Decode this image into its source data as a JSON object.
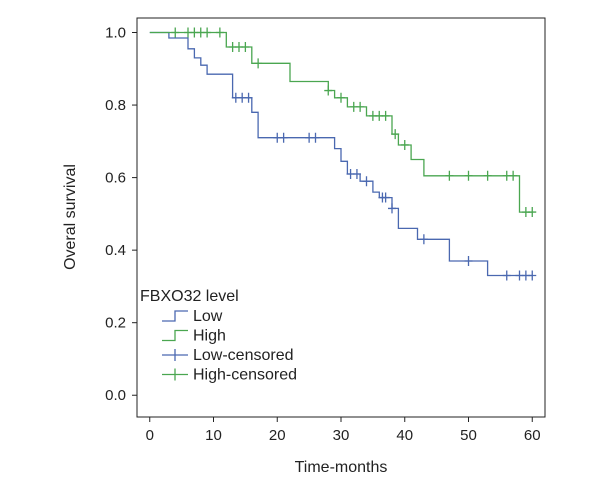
{
  "chart_data": {
    "type": "line",
    "subtype": "kaplan-meier-step",
    "xlabel": "Time-months",
    "ylabel": "Overal survival",
    "xlim": [
      -2,
      62
    ],
    "ylim": [
      -0.06,
      1.04
    ],
    "x_ticks": [
      0,
      10,
      20,
      30,
      40,
      50,
      60
    ],
    "x_tick_labels": [
      "0",
      "10",
      "20",
      "30",
      "40",
      "50",
      "60"
    ],
    "y_ticks": [
      0.0,
      0.2,
      0.4,
      0.6,
      0.8,
      1.0
    ],
    "y_tick_labels": [
      "0.0",
      "0.2",
      "0.4",
      "0.6",
      "0.8",
      "1.0"
    ],
    "grid": false,
    "legend": {
      "title": "FBXO32 level",
      "position": "bottom-left",
      "entries": [
        {
          "label": "Low",
          "series": "low",
          "kind": "step"
        },
        {
          "label": "High",
          "series": "high",
          "kind": "step"
        },
        {
          "label": "Low-censored",
          "series": "low",
          "kind": "censor"
        },
        {
          "label": "High-censored",
          "series": "high",
          "kind": "censor"
        }
      ]
    },
    "series": [
      {
        "name": "Low",
        "key": "low",
        "color": "#4a68b0",
        "steps": [
          [
            0,
            1.0
          ],
          [
            3,
            0.985
          ],
          [
            6,
            0.955
          ],
          [
            7,
            0.93
          ],
          [
            8,
            0.91
          ],
          [
            9,
            0.885
          ],
          [
            13,
            0.82
          ],
          [
            16,
            0.78
          ],
          [
            17,
            0.71
          ],
          [
            28,
            0.71
          ],
          [
            29,
            0.68
          ],
          [
            30,
            0.645
          ],
          [
            31,
            0.61
          ],
          [
            33,
            0.59
          ],
          [
            35,
            0.56
          ],
          [
            36,
            0.545
          ],
          [
            38,
            0.515
          ],
          [
            39,
            0.46
          ],
          [
            42,
            0.43
          ],
          [
            47,
            0.37
          ],
          [
            53,
            0.33
          ],
          [
            60,
            0.33
          ]
        ],
        "censored": [
          [
            13.5,
            0.82
          ],
          [
            14.5,
            0.82
          ],
          [
            15.5,
            0.82
          ],
          [
            20,
            0.71
          ],
          [
            21,
            0.71
          ],
          [
            25,
            0.71
          ],
          [
            26,
            0.71
          ],
          [
            31.5,
            0.61
          ],
          [
            32.5,
            0.61
          ],
          [
            34,
            0.59
          ],
          [
            36.5,
            0.545
          ],
          [
            37,
            0.545
          ],
          [
            38,
            0.515
          ],
          [
            43,
            0.43
          ],
          [
            50,
            0.37
          ],
          [
            56,
            0.33
          ],
          [
            58,
            0.33
          ],
          [
            59,
            0.33
          ],
          [
            60,
            0.33
          ]
        ]
      },
      {
        "name": "High",
        "key": "high",
        "color": "#4aa650",
        "steps": [
          [
            0,
            1.0
          ],
          [
            12,
            0.96
          ],
          [
            16,
            0.915
          ],
          [
            22,
            0.865
          ],
          [
            28,
            0.84
          ],
          [
            29,
            0.82
          ],
          [
            31,
            0.795
          ],
          [
            34,
            0.77
          ],
          [
            38,
            0.72
          ],
          [
            39,
            0.69
          ],
          [
            41,
            0.65
          ],
          [
            43,
            0.605
          ],
          [
            58,
            0.505
          ],
          [
            60,
            0.505
          ]
        ],
        "censored": [
          [
            4,
            1.0
          ],
          [
            6,
            1.0
          ],
          [
            7,
            1.0
          ],
          [
            8,
            1.0
          ],
          [
            9,
            1.0
          ],
          [
            11,
            1.0
          ],
          [
            13,
            0.96
          ],
          [
            14,
            0.96
          ],
          [
            15,
            0.96
          ],
          [
            17,
            0.915
          ],
          [
            28,
            0.84
          ],
          [
            30,
            0.82
          ],
          [
            32,
            0.795
          ],
          [
            33,
            0.795
          ],
          [
            35,
            0.77
          ],
          [
            36,
            0.77
          ],
          [
            37,
            0.77
          ],
          [
            38.5,
            0.72
          ],
          [
            40,
            0.69
          ],
          [
            47,
            0.605
          ],
          [
            50,
            0.605
          ],
          [
            53,
            0.605
          ],
          [
            56,
            0.605
          ],
          [
            57,
            0.605
          ],
          [
            59,
            0.505
          ],
          [
            60,
            0.505
          ]
        ]
      }
    ]
  }
}
